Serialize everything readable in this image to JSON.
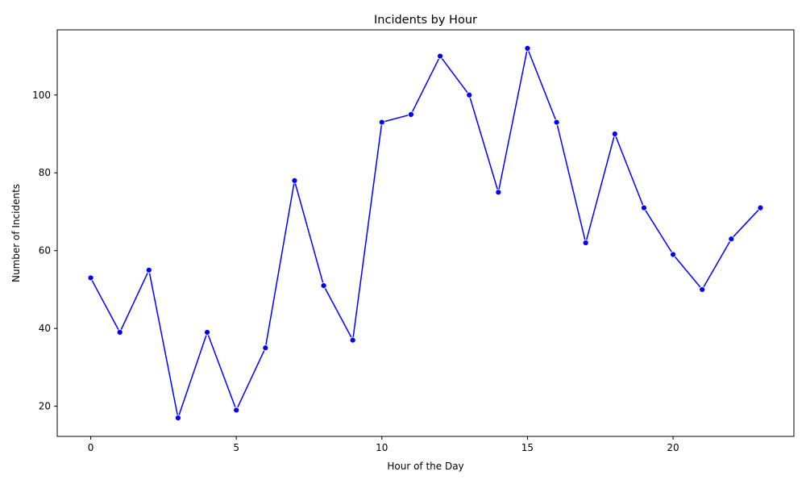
{
  "chart_data": {
    "type": "line",
    "title": "Incidents by Hour",
    "xlabel": "Hour of the Day",
    "ylabel": "Number of Incidents",
    "x": [
      0,
      1,
      2,
      3,
      4,
      5,
      6,
      7,
      8,
      9,
      10,
      11,
      12,
      13,
      14,
      15,
      16,
      17,
      18,
      19,
      20,
      21,
      22,
      23
    ],
    "series": [
      {
        "values": [
          53,
          39,
          55,
          17,
          39,
          19,
          35,
          78,
          51,
          37,
          93,
          95,
          110,
          100,
          75,
          112,
          93,
          62,
          90,
          71,
          59,
          50,
          63,
          71
        ],
        "color": "#0000ff"
      }
    ],
    "xlim": [
      -1.15,
      24.15
    ],
    "ylim": [
      12.25,
      116.75
    ],
    "xticks": [
      "0",
      "5",
      "10",
      "15",
      "20"
    ],
    "yticks": [
      "20",
      "40",
      "60",
      "80",
      "100"
    ],
    "grid": false,
    "marker": "circle"
  }
}
